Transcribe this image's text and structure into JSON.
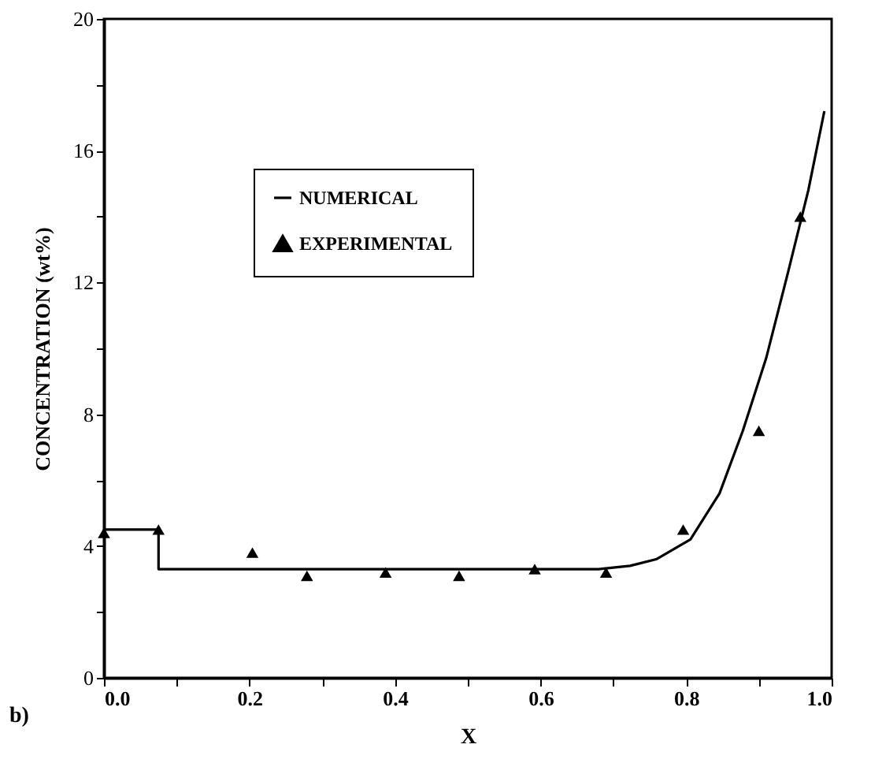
{
  "chart_data": {
    "type": "scatter",
    "xlabel": "X",
    "ylabel": "CONCENTRATION (wt%)",
    "annotations": [
      "b)"
    ],
    "xlim": [
      0,
      1
    ],
    "ylim": [
      0,
      20
    ],
    "xticks": [
      {
        "value": 0,
        "label": "0.0"
      },
      {
        "value": 0.1,
        "label": null
      },
      {
        "value": 0.2,
        "label": "0.2"
      },
      {
        "value": 0.3,
        "label": null
      },
      {
        "value": 0.4,
        "label": "0.4"
      },
      {
        "value": 0.5,
        "label": null
      },
      {
        "value": 0.6,
        "label": "0.6"
      },
      {
        "value": 0.7,
        "label": null
      },
      {
        "value": 0.8,
        "label": "0.8"
      },
      {
        "value": 0.9,
        "label": null
      },
      {
        "value": 1,
        "label": "1.0"
      }
    ],
    "yticks": [
      0,
      {
        "value": 2,
        "label": null
      },
      4,
      {
        "value": 6,
        "label": null
      },
      8,
      {
        "value": 10,
        "label": null
      },
      12,
      {
        "value": 14,
        "label": null
      },
      16,
      {
        "value": 18,
        "label": null
      },
      20
    ],
    "legend": "top left",
    "grid": false,
    "series": [
      {
        "name": "NUMERICAL",
        "type": "line",
        "color": "#000000",
        "marker": "none",
        "line_style": "solid",
        "x": [
          0,
          0.075,
          0.075,
          0.68,
          0.723,
          0.759,
          0.806,
          0.846,
          0.878,
          0.91,
          0.94,
          0.968,
          0.99
        ],
        "values": [
          4.5,
          4.5,
          3.3,
          3.3,
          3.4,
          3.6,
          4.2,
          5.6,
          7.5,
          9.7,
          12.3,
          14.8,
          17.2
        ]
      },
      {
        "name": "EXPERIMENTAL",
        "color": "#000000",
        "marker": "triangle",
        "x": [
          0,
          0.075,
          0.204,
          0.279,
          0.387,
          0.488,
          0.592,
          0.69,
          0.796,
          0.9,
          0.957
        ],
        "values": [
          4.4,
          4.5,
          3.8,
          3.1,
          3.2,
          3.1,
          3.3,
          3.2,
          4.5,
          7.5,
          14.0
        ]
      }
    ]
  }
}
